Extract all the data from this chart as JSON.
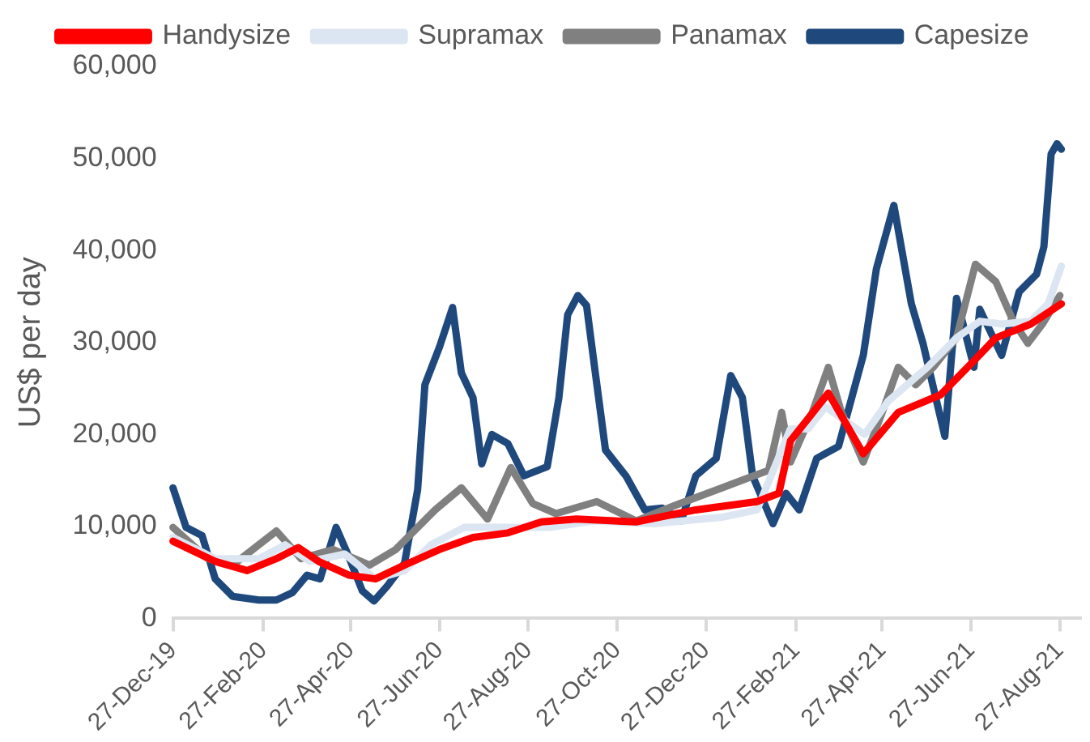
{
  "chart_data": {
    "type": "line",
    "ylabel": "US$ per day",
    "xlim": [
      "2019-12-27",
      "2021-09-10"
    ],
    "xticks": [
      {
        "value": "2019-12-27",
        "label": "27-Dec-19"
      },
      {
        "value": "2020-02-27",
        "label": "27-Feb-20"
      },
      {
        "value": "2020-04-27",
        "label": "27-Apr-20"
      },
      {
        "value": "2020-06-27",
        "label": "27-Jun-20"
      },
      {
        "value": "2020-08-27",
        "label": "27-Aug-20"
      },
      {
        "value": "2020-10-27",
        "label": "27-Oct-20"
      },
      {
        "value": "2020-12-27",
        "label": "27-Dec-20"
      },
      {
        "value": "2021-02-27",
        "label": "27-Feb-21"
      },
      {
        "value": "2021-04-27",
        "label": "27-Apr-21"
      },
      {
        "value": "2021-06-27",
        "label": "27-Jun-21"
      },
      {
        "value": "2021-08-27",
        "label": "27-Aug-21"
      }
    ],
    "ylim": [
      0,
      60000
    ],
    "yticks": [
      {
        "value": 0,
        "label": "0"
      },
      {
        "value": 10000,
        "label": "10,000"
      },
      {
        "value": 20000,
        "label": "20,000"
      },
      {
        "value": 30000,
        "label": "30,000"
      },
      {
        "value": 40000,
        "label": "40,000"
      },
      {
        "value": 50000,
        "label": "50,000"
      },
      {
        "value": 60000,
        "label": "60,000"
      }
    ],
    "grid": false,
    "legend": "top",
    "series": [
      {
        "name": "Capesize",
        "color": "#1f497d",
        "x": [
          "2019-12-27",
          "2020-01-05",
          "2020-01-16",
          "2020-01-25",
          "2020-02-06",
          "2020-02-24",
          "2020-03-07",
          "2020-03-18",
          "2020-03-28",
          "2020-04-06",
          "2020-04-17",
          "2020-04-25",
          "2020-05-05",
          "2020-05-13",
          "2020-05-22",
          "2020-06-03",
          "2020-06-12",
          "2020-06-17",
          "2020-06-27",
          "2020-07-06",
          "2020-07-12",
          "2020-07-20",
          "2020-07-26",
          "2020-08-02",
          "2020-08-13",
          "2020-08-24",
          "2020-09-09",
          "2020-09-17",
          "2020-09-23",
          "2020-09-30",
          "2020-10-06",
          "2020-10-12",
          "2020-10-19",
          "2020-11-02",
          "2020-11-15",
          "2020-11-27",
          "2020-12-10",
          "2020-12-20",
          "2021-01-03",
          "2021-01-13",
          "2021-01-21",
          "2021-01-28",
          "2021-02-11",
          "2021-02-20",
          "2021-03-01",
          "2021-03-13",
          "2021-03-28",
          "2021-04-14",
          "2021-04-23",
          "2021-05-05",
          "2021-05-17",
          "2021-05-25",
          "2021-06-09",
          "2021-06-17",
          "2021-06-29",
          "2021-07-03",
          "2021-07-18",
          "2021-07-30",
          "2021-08-11",
          "2021-08-16",
          "2021-08-21",
          "2021-08-25",
          "2021-08-28"
        ],
        "values": [
          14200,
          9900,
          9000,
          4300,
          2400,
          2000,
          2000,
          2800,
          4700,
          4300,
          9900,
          7000,
          3000,
          1900,
          3500,
          6000,
          14000,
          25400,
          29500,
          33800,
          26700,
          24000,
          16800,
          20000,
          19000,
          15500,
          16500,
          24000,
          33000,
          35100,
          34000,
          26700,
          18300,
          15500,
          11800,
          12000,
          10600,
          15500,
          17400,
          26400,
          24000,
          15500,
          10300,
          13600,
          11800,
          17400,
          18700,
          28600,
          38000,
          44900,
          34200,
          29900,
          19800,
          34800,
          27300,
          33600,
          28600,
          35500,
          37400,
          40400,
          50500,
          51600,
          51000
        ]
      },
      {
        "name": "Panamax",
        "color": "#808080",
        "x": [
          "2019-12-27",
          "2020-01-20",
          "2020-02-06",
          "2020-03-07",
          "2020-03-24",
          "2020-04-15",
          "2020-05-10",
          "2020-05-28",
          "2020-06-24",
          "2020-07-12",
          "2020-07-30",
          "2020-08-15",
          "2020-08-30",
          "2020-09-15",
          "2020-10-13",
          "2020-11-09",
          "2020-12-06",
          "2021-01-07",
          "2021-01-22",
          "2021-02-08",
          "2021-02-17",
          "2021-02-23",
          "2021-03-10",
          "2021-03-21",
          "2021-03-30",
          "2021-04-14",
          "2021-04-27",
          "2021-05-08",
          "2021-05-20",
          "2021-06-01",
          "2021-06-17",
          "2021-06-30",
          "2021-07-14",
          "2021-07-26",
          "2021-08-05",
          "2021-08-15",
          "2021-08-27"
        ],
        "values": [
          9900,
          6500,
          5800,
          9500,
          6500,
          7500,
          5800,
          7500,
          11800,
          14200,
          10800,
          16400,
          12500,
          11400,
          12700,
          10600,
          12300,
          14200,
          15100,
          16100,
          22400,
          17000,
          22400,
          27300,
          22400,
          17000,
          22400,
          27300,
          25400,
          27300,
          30500,
          38500,
          36600,
          32300,
          29900,
          32000,
          35100
        ]
      },
      {
        "name": "Supramax",
        "color": "#dce6f2",
        "x": [
          "2019-12-27",
          "2020-01-25",
          "2020-02-24",
          "2020-03-13",
          "2020-03-30",
          "2020-04-23",
          "2020-05-14",
          "2020-06-03",
          "2020-06-21",
          "2020-07-14",
          "2020-08-13",
          "2020-09-11",
          "2020-10-11",
          "2020-11-21",
          "2021-01-07",
          "2021-01-31",
          "2021-02-23",
          "2021-03-07",
          "2021-03-19",
          "2021-04-15",
          "2021-05-01",
          "2021-05-28",
          "2021-06-17",
          "2021-07-03",
          "2021-07-18",
          "2021-08-07",
          "2021-08-19",
          "2021-08-28"
        ],
        "values": [
          8800,
          6500,
          6500,
          8000,
          6200,
          7000,
          4300,
          5200,
          8000,
          9900,
          9900,
          9900,
          10600,
          10300,
          11000,
          11800,
          20600,
          20600,
          23000,
          20000,
          23600,
          27300,
          30500,
          32300,
          32000,
          32300,
          34200,
          38300
        ]
      },
      {
        "name": "Handysize",
        "color": "#ff0000",
        "x": [
          "2019-12-27",
          "2020-01-25",
          "2020-02-16",
          "2020-03-07",
          "2020-03-22",
          "2020-04-05",
          "2020-04-26",
          "2020-05-14",
          "2020-06-03",
          "2020-06-27",
          "2020-07-20",
          "2020-08-13",
          "2020-09-05",
          "2020-09-29",
          "2020-11-09",
          "2020-12-20",
          "2021-01-31",
          "2021-02-15",
          "2021-02-23",
          "2021-03-21",
          "2021-04-14",
          "2021-05-08",
          "2021-06-06",
          "2021-06-29",
          "2021-07-14",
          "2021-08-07",
          "2021-08-28"
        ],
        "values": [
          8400,
          6200,
          5200,
          6500,
          7700,
          6200,
          4700,
          4300,
          5800,
          7500,
          8800,
          9300,
          10500,
          10800,
          10500,
          11800,
          12700,
          13600,
          19300,
          24500,
          17900,
          22400,
          24300,
          28000,
          30500,
          32000,
          34200
        ]
      }
    ]
  }
}
